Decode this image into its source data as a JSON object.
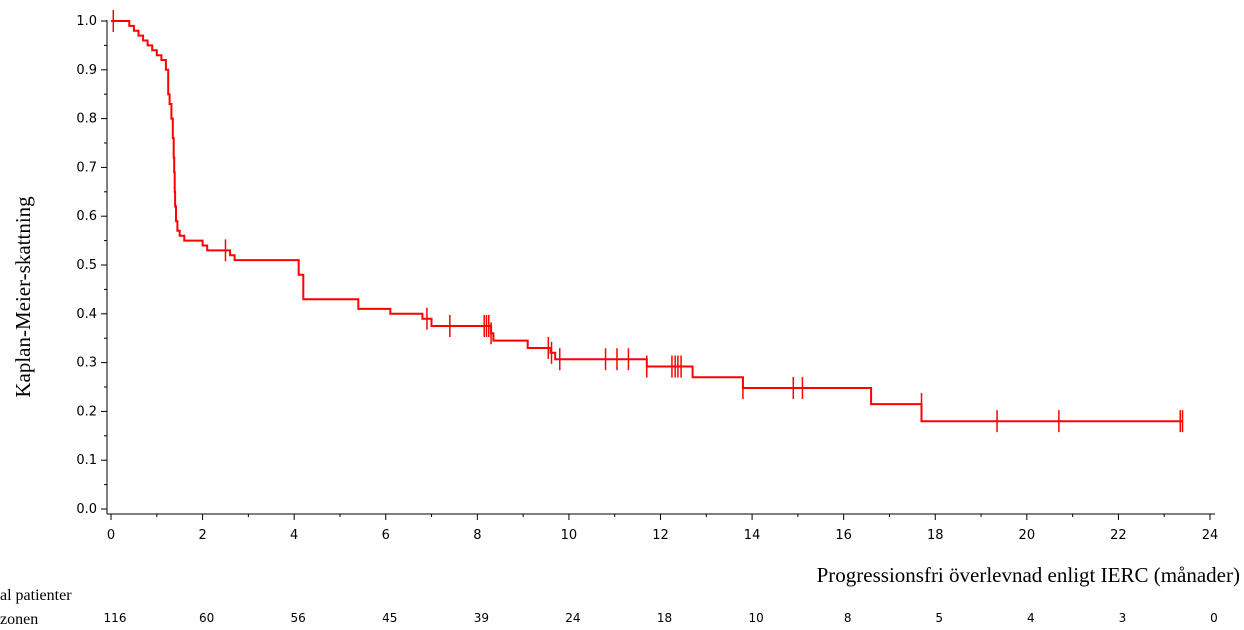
{
  "chart_data": {
    "type": "line",
    "title": "",
    "xlabel": "Progressionsfri överlevnad enligt IERC (månader)",
    "ylabel": "Kaplan-Meier-skattning",
    "xlim": [
      0,
      24
    ],
    "ylim": [
      0,
      1.0
    ],
    "x_ticks": [
      "0",
      "2",
      "4",
      "6",
      "8",
      "10",
      "12",
      "14",
      "16",
      "18",
      "20",
      "22",
      "24"
    ],
    "y_ticks": [
      "0.0",
      "0.1",
      "0.2",
      "0.3",
      "0.4",
      "0.5",
      "0.6",
      "0.7",
      "0.8",
      "0.9",
      "1.0"
    ],
    "grid": false,
    "color": "#ff0000",
    "series": [
      {
        "step_points": [
          [
            0,
            1.0
          ],
          [
            0.4,
            0.99
          ],
          [
            0.5,
            0.98
          ],
          [
            0.6,
            0.97
          ],
          [
            0.7,
            0.96
          ],
          [
            0.8,
            0.95
          ],
          [
            0.9,
            0.94
          ],
          [
            1.0,
            0.93
          ],
          [
            1.1,
            0.92
          ],
          [
            1.2,
            0.9
          ],
          [
            1.25,
            0.85
          ],
          [
            1.28,
            0.83
          ],
          [
            1.32,
            0.8
          ],
          [
            1.35,
            0.76
          ],
          [
            1.37,
            0.72
          ],
          [
            1.38,
            0.69
          ],
          [
            1.39,
            0.65
          ],
          [
            1.4,
            0.62
          ],
          [
            1.42,
            0.59
          ],
          [
            1.45,
            0.57
          ],
          [
            1.5,
            0.56
          ],
          [
            1.6,
            0.55
          ],
          [
            2.0,
            0.54
          ],
          [
            2.1,
            0.53
          ],
          [
            2.6,
            0.52
          ],
          [
            2.7,
            0.51
          ],
          [
            4.1,
            0.48
          ],
          [
            4.2,
            0.43
          ],
          [
            5.4,
            0.41
          ],
          [
            6.1,
            0.4
          ],
          [
            6.8,
            0.39
          ],
          [
            7.0,
            0.375
          ],
          [
            8.3,
            0.36
          ],
          [
            8.35,
            0.345
          ],
          [
            9.1,
            0.33
          ],
          [
            9.6,
            0.32
          ],
          [
            9.7,
            0.307
          ],
          [
            11.7,
            0.292
          ],
          [
            12.7,
            0.27
          ],
          [
            13.8,
            0.248
          ],
          [
            16.6,
            0.215
          ],
          [
            17.7,
            0.18
          ],
          [
            23.4,
            0.18
          ]
        ],
        "censors": [
          [
            0.05,
            1.0
          ],
          [
            2.5,
            0.53
          ],
          [
            6.9,
            0.39
          ],
          [
            7.4,
            0.375
          ],
          [
            8.15,
            0.375
          ],
          [
            8.2,
            0.375
          ],
          [
            8.25,
            0.375
          ],
          [
            8.3,
            0.36
          ],
          [
            9.55,
            0.33
          ],
          [
            9.62,
            0.32
          ],
          [
            9.8,
            0.307
          ],
          [
            10.8,
            0.307
          ],
          [
            11.05,
            0.307
          ],
          [
            11.3,
            0.307
          ],
          [
            11.7,
            0.292
          ],
          [
            12.25,
            0.292
          ],
          [
            12.32,
            0.292
          ],
          [
            12.38,
            0.292
          ],
          [
            12.45,
            0.292
          ],
          [
            13.8,
            0.248
          ],
          [
            14.9,
            0.248
          ],
          [
            15.1,
            0.248
          ],
          [
            17.7,
            0.215
          ],
          [
            19.35,
            0.18
          ],
          [
            20.7,
            0.18
          ],
          [
            23.35,
            0.18
          ],
          [
            23.4,
            0.18
          ]
        ]
      }
    ],
    "risk_table": {
      "label_line1": "al patienter",
      "label_line2": "zonen",
      "counts": [
        "116",
        "60",
        "56",
        "45",
        "39",
        "24",
        "18",
        "10",
        "8",
        "5",
        "4",
        "3",
        "0"
      ]
    }
  }
}
